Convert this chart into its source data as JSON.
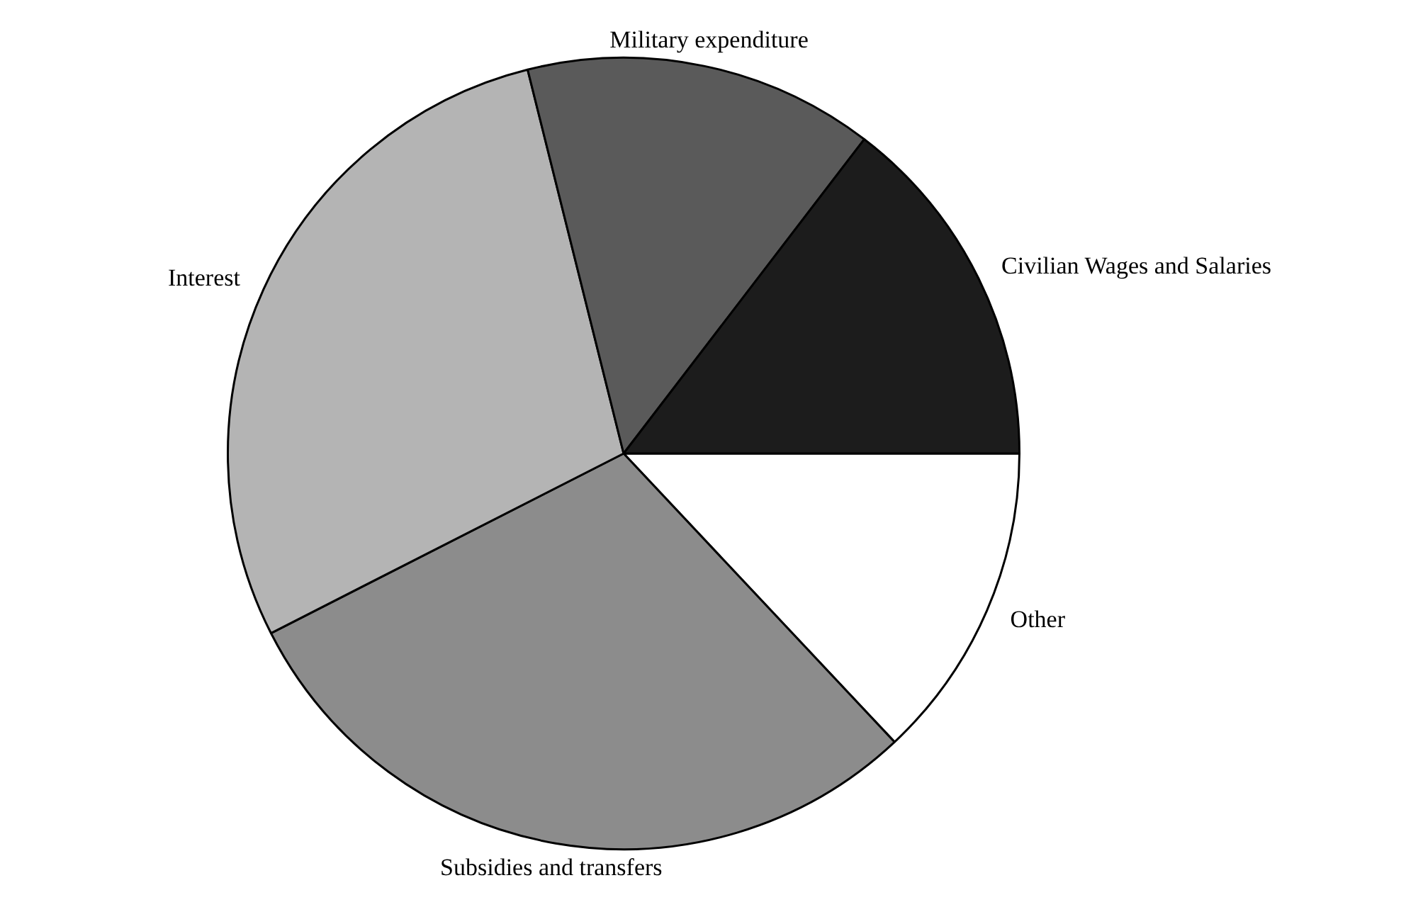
{
  "chart_data": {
    "type": "pie",
    "categories": [
      "Other",
      "Subsidies and transfers",
      "Interest",
      "Military expenditure",
      "Civilian Wages and Salaries"
    ],
    "values": [
      13.0,
      29.5,
      28.6,
      14.3,
      14.6
    ],
    "colors": [
      "#ffffff",
      "#8c8c8c",
      "#b4b4b4",
      "#5a5a5a",
      "#1c1c1c"
    ],
    "legend": false
  }
}
